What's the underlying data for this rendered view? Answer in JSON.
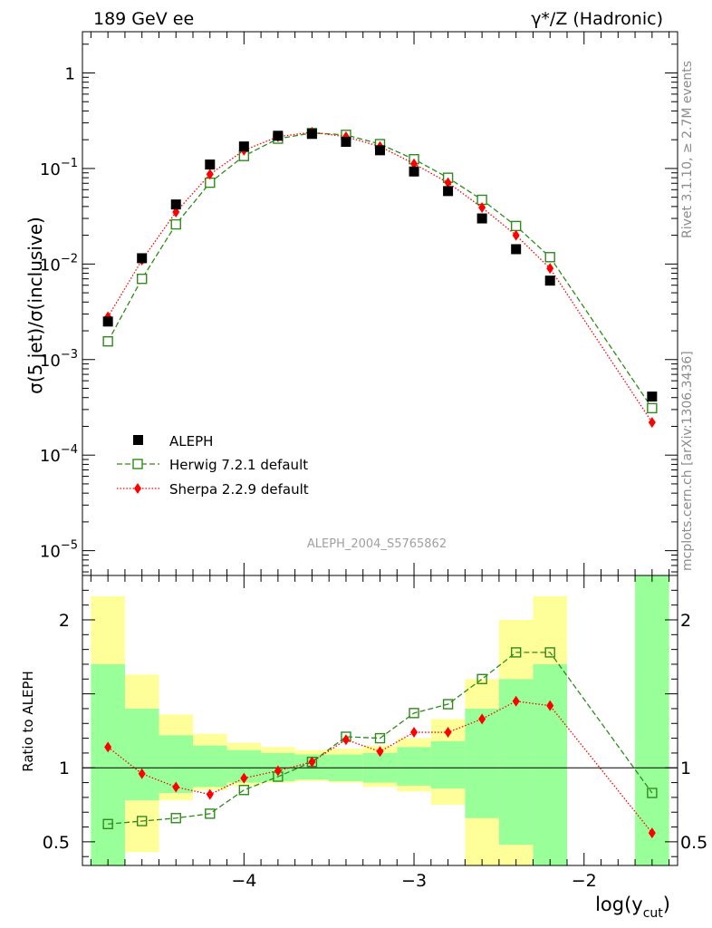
{
  "header": {
    "left_label": "189 GeV ee",
    "right_label": "γ*/Z (Hadronic)"
  },
  "side_labels": {
    "rivet": "Rivet 3.1.10, ≥ 2.7M events",
    "mcplots": "mcplots.cern.ch [arXiv:1306.3436]"
  },
  "analysis_label": "ALEPH_2004_S5765862",
  "colors": {
    "aleph": "#000000",
    "herwig": "#2e8b1a",
    "sherpa": "#ff0000",
    "band_inner": "#99ff99",
    "band_outer": "#ffff99"
  },
  "chart_data": [
    {
      "type": "scatter",
      "panel": "main",
      "ylabel": "σ(5 jet)/σ(inclusive)",
      "xlabel": "log(y_cut)",
      "yscale": "log",
      "ylim": [
        5.5e-06,
        2.7
      ],
      "xlim": [
        -4.95,
        -1.45
      ],
      "yticks": [
        {
          "value": 1e-05,
          "base": "10",
          "exp": "−5"
        },
        {
          "value": 0.0001,
          "base": "10",
          "exp": "−4"
        },
        {
          "value": 0.001,
          "base": "10",
          "exp": "−3"
        },
        {
          "value": 0.01,
          "base": "10",
          "exp": "−2"
        },
        {
          "value": 0.1,
          "base": "10",
          "exp": "−1"
        },
        {
          "value": 1,
          "base": "1",
          "exp": ""
        }
      ],
      "legend_placement": "bottom-left",
      "series": [
        {
          "name": "ALEPH",
          "marker": "filled-square",
          "x": [
            -4.8,
            -4.6,
            -4.4,
            -4.2,
            -4.0,
            -3.8,
            -3.6,
            -3.4,
            -3.2,
            -3.0,
            -2.8,
            -2.6,
            -2.4,
            -2.2,
            -1.6
          ],
          "y": [
            0.0025,
            0.0115,
            0.042,
            0.11,
            0.17,
            0.22,
            0.23,
            0.19,
            0.155,
            0.093,
            0.058,
            0.03,
            0.0143,
            0.0067,
            0.00041
          ]
        },
        {
          "name": "Herwig 7.2.1 default",
          "marker": "open-square",
          "line": "dashed",
          "x": [
            -4.8,
            -4.6,
            -4.4,
            -4.2,
            -4.0,
            -3.8,
            -3.6,
            -3.4,
            -3.2,
            -3.0,
            -2.8,
            -2.6,
            -2.4,
            -2.2,
            -1.6
          ],
          "y": [
            0.00155,
            0.007,
            0.026,
            0.071,
            0.135,
            0.205,
            0.235,
            0.225,
            0.18,
            0.125,
            0.08,
            0.047,
            0.025,
            0.0118,
            0.00031
          ]
        },
        {
          "name": "Sherpa 2.2.9 default",
          "marker": "diamond",
          "line": "dotted",
          "x": [
            -4.8,
            -4.6,
            -4.4,
            -4.2,
            -4.0,
            -3.8,
            -3.6,
            -3.4,
            -3.2,
            -3.0,
            -2.8,
            -2.6,
            -2.4,
            -2.2,
            -1.6
          ],
          "y": [
            0.0028,
            0.011,
            0.035,
            0.087,
            0.155,
            0.215,
            0.24,
            0.215,
            0.17,
            0.112,
            0.071,
            0.039,
            0.02,
            0.009,
            0.00022
          ]
        }
      ]
    },
    {
      "type": "scatter",
      "panel": "ratio",
      "ylabel": "Ratio to ALEPH",
      "xlabel": "log(y_cut)",
      "ylim": [
        0.34,
        2.3
      ],
      "xlim": [
        -4.95,
        -1.45
      ],
      "yticks": [
        0.5,
        1,
        2
      ],
      "ytick_labels": [
        "0.5",
        "1",
        "2"
      ],
      "xticks": [
        -4,
        -3,
        -2
      ],
      "xtick_labels": [
        "−4",
        "−3",
        "−2"
      ],
      "bands": [
        {
          "x0": -4.9,
          "x1": -4.7,
          "outer": [
            0.34,
            2.16
          ],
          "inner": [
            0.34,
            1.7
          ]
        },
        {
          "x0": -4.7,
          "x1": -4.5,
          "outer": [
            0.43,
            1.63
          ],
          "inner": [
            0.78,
            1.4
          ]
        },
        {
          "x0": -4.5,
          "x1": -4.3,
          "outer": [
            0.78,
            1.36
          ],
          "inner": [
            0.83,
            1.22
          ]
        },
        {
          "x0": -4.3,
          "x1": -4.1,
          "outer": [
            0.85,
            1.23
          ],
          "inner": [
            0.87,
            1.15
          ]
        },
        {
          "x0": -4.1,
          "x1": -3.9,
          "outer": [
            0.88,
            1.17
          ],
          "inner": [
            0.9,
            1.12
          ]
        },
        {
          "x0": -3.9,
          "x1": -3.7,
          "outer": [
            0.9,
            1.14
          ],
          "inner": [
            0.91,
            1.1
          ]
        },
        {
          "x0": -3.7,
          "x1": -3.5,
          "outer": [
            0.91,
            1.12
          ],
          "inner": [
            0.92,
            1.09
          ]
        },
        {
          "x0": -3.5,
          "x1": -3.3,
          "outer": [
            0.9,
            1.13
          ],
          "inner": [
            0.91,
            1.09
          ]
        },
        {
          "x0": -3.3,
          "x1": -3.1,
          "outer": [
            0.87,
            1.15
          ],
          "inner": [
            0.9,
            1.1
          ]
        },
        {
          "x0": -3.1,
          "x1": -2.9,
          "outer": [
            0.84,
            1.2
          ],
          "inner": [
            0.88,
            1.14
          ]
        },
        {
          "x0": -2.9,
          "x1": -2.7,
          "outer": [
            0.75,
            1.33
          ],
          "inner": [
            0.86,
            1.18
          ]
        },
        {
          "x0": -2.7,
          "x1": -2.5,
          "outer": [
            0.34,
            1.6
          ],
          "inner": [
            0.66,
            1.4
          ]
        },
        {
          "x0": -2.5,
          "x1": -2.3,
          "outer": [
            0.34,
            2.0
          ],
          "inner": [
            0.48,
            1.6
          ]
        },
        {
          "x0": -2.3,
          "x1": -2.1,
          "outer": [
            0.34,
            2.16
          ],
          "inner": [
            0.34,
            1.7
          ]
        },
        {
          "x0": -1.7,
          "x1": -1.5,
          "outer": [
            0.34,
            2.3
          ],
          "inner": [
            0.34,
            2.3
          ]
        }
      ],
      "series": [
        {
          "name": "Herwig 7.2.1 default",
          "x": [
            -4.8,
            -4.6,
            -4.4,
            -4.2,
            -4.0,
            -3.8,
            -3.6,
            -3.4,
            -3.2,
            -3.0,
            -2.8,
            -2.6,
            -2.4,
            -2.2,
            -1.6
          ],
          "y": [
            0.62,
            0.64,
            0.66,
            0.69,
            0.85,
            0.94,
            1.04,
            1.21,
            1.2,
            1.37,
            1.43,
            1.6,
            1.78,
            1.78,
            0.83
          ]
        },
        {
          "name": "Sherpa 2.2.9 default",
          "x": [
            -4.8,
            -4.6,
            -4.4,
            -4.2,
            -4.0,
            -3.8,
            -3.6,
            -3.4,
            -3.2,
            -3.0,
            -2.8,
            -2.6,
            -2.4,
            -2.2,
            -1.6
          ],
          "y": [
            1.14,
            0.96,
            0.87,
            0.82,
            0.93,
            0.98,
            1.04,
            1.19,
            1.11,
            1.24,
            1.24,
            1.33,
            1.45,
            1.42,
            0.56
          ]
        }
      ]
    }
  ]
}
